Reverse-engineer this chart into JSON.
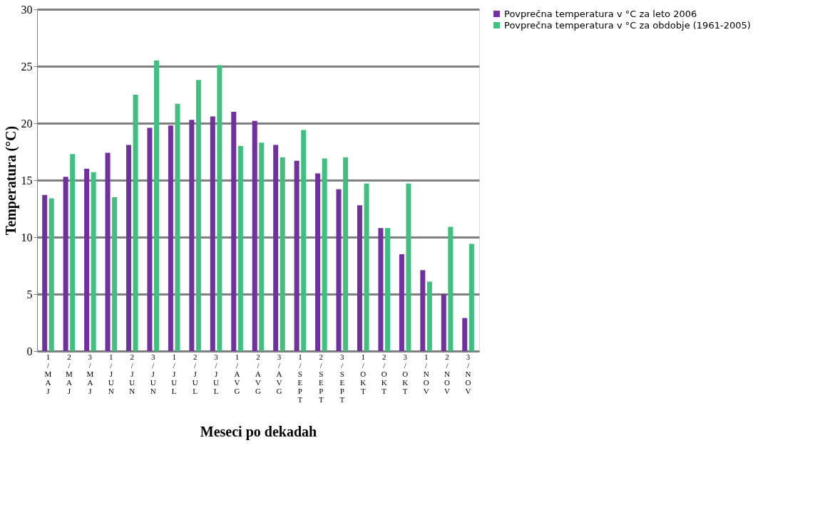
{
  "chart_data": {
    "type": "bar",
    "xlabel": "Meseci po dekadah",
    "ylabel": "Temperatura (°C)",
    "categories": [
      "1/MAJ",
      "2/MAJ",
      "3/MAJ",
      "1/JUN",
      "2/JUN",
      "3/JUN",
      "1/JUL",
      "2/JUL",
      "3/JUL",
      "1/AVG",
      "2/AVG",
      "3/AVG",
      "1/SEPT",
      "2/SEPT",
      "3/SEPT",
      "1/OKT",
      "2/OKT",
      "3/OKT",
      "1/NOV",
      "2/NOV",
      "3/NOV"
    ],
    "series": [
      {
        "name": "Povprečna temperatura  v °C za leto 2006",
        "color": "#7030a0",
        "values": [
          13.7,
          15.3,
          16.0,
          17.4,
          18.1,
          19.6,
          19.8,
          20.3,
          20.6,
          21.0,
          20.2,
          18.1,
          16.7,
          15.6,
          14.2,
          12.8,
          10.8,
          8.5,
          7.1,
          5.0,
          2.9
        ]
      },
      {
        "name": "Povprečna temperatura v °C za obdobje (1961-2005)",
        "color": "#40c080",
        "values": [
          13.4,
          17.3,
          15.7,
          13.5,
          22.5,
          25.5,
          21.7,
          23.8,
          25.1,
          18.0,
          18.3,
          17.0,
          19.4,
          16.9,
          17.0,
          14.7,
          10.8,
          14.7,
          6.1,
          10.9,
          9.4
        ]
      }
    ],
    "ylim": [
      0,
      30
    ],
    "yticks": [
      0,
      5,
      10,
      15,
      20,
      25,
      30
    ],
    "grid": "y",
    "legend": "right"
  }
}
